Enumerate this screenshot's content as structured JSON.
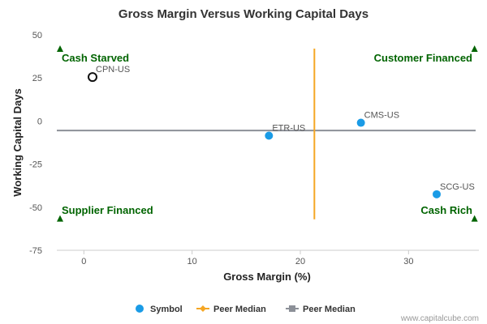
{
  "chart_data": {
    "type": "scatter",
    "title": "Gross Margin Versus Working Capital Days",
    "xlabel": "Gross Margin (%)",
    "ylabel": "Working Capital Days",
    "xlim": [
      -2.5,
      36.5
    ],
    "ylim": [
      -75,
      50
    ],
    "x_ticks": [
      0,
      10,
      20,
      30
    ],
    "y_ticks": [
      50,
      25,
      0,
      -25,
      -50,
      -75
    ],
    "grid": false,
    "points": [
      {
        "label": "CPN-US",
        "x": 0.8,
        "y": 25.5,
        "style": "hollow"
      },
      {
        "label": "ETR-US",
        "x": 17.1,
        "y": -8.5,
        "style": "filled"
      },
      {
        "label": "CMS-US",
        "x": 25.6,
        "y": -1.0,
        "style": "filled"
      },
      {
        "label": "SCG-US",
        "x": 32.6,
        "y": -42.5,
        "style": "filled"
      }
    ],
    "peer_median_x": 21.3,
    "peer_median_y": -5.5,
    "peer_median_x_range": [
      -57,
      42
    ],
    "peer_median_y_range": [
      -2.5,
      36.2
    ],
    "quadrants": [
      {
        "label": "Cash Starved",
        "position": "top-left"
      },
      {
        "label": "Customer Financed",
        "position": "top-right"
      },
      {
        "label": "Supplier Financed",
        "position": "bottom-left"
      },
      {
        "label": "Cash Rich",
        "position": "bottom-right"
      }
    ],
    "legend": {
      "placement": "bottom",
      "items": [
        {
          "label": "Symbol",
          "marker": "circle",
          "color": "#1a9be6"
        },
        {
          "label": "Peer Median",
          "marker": "diamond-line",
          "color": "#f5a623"
        },
        {
          "label": "Peer Median",
          "marker": "square-line",
          "color": "#8c9098"
        }
      ]
    },
    "credit": "www.capitalcube.com"
  },
  "colors": {
    "point_fill": "#1a9be6",
    "hollow_stroke": "#111111",
    "median_vertical": "#f5a623",
    "median_horizontal": "#8c9098",
    "quadrant_text": "#006400",
    "triangle": "#006400",
    "axis": "#cccccc"
  }
}
